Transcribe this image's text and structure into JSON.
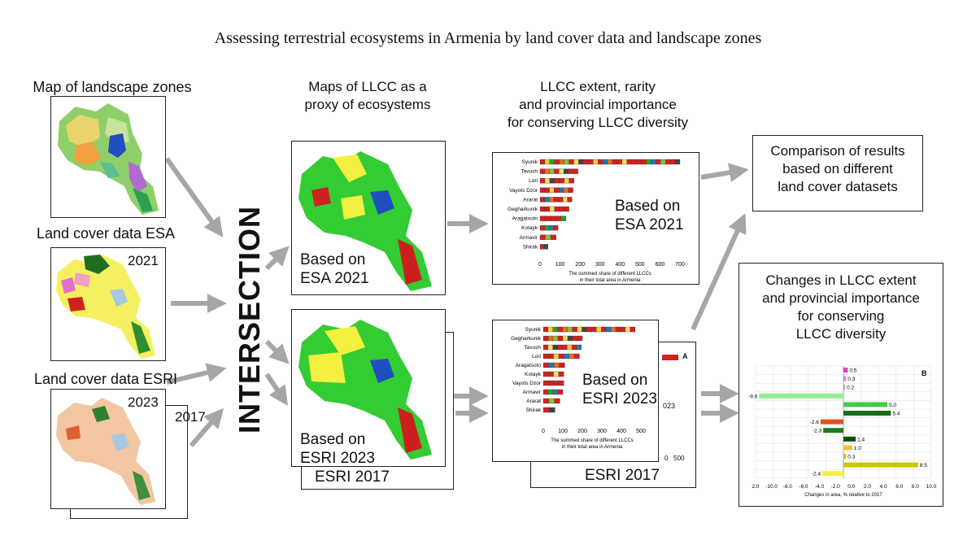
{
  "title": "Assessing terrestrial ecosystems in Armenia by land cover data and landscape zones",
  "inputs": {
    "landscape_label": "Map of landscape zones",
    "esa_label": "Land cover data ESA",
    "esa_year": "2021",
    "esri_label": "Land cover data ESRI",
    "esri_year": "2023",
    "esri_year_back": "2017"
  },
  "intersection": "INTERSECTION",
  "maps": {
    "heading_line1": "Maps of LLCC as a",
    "heading_line2": "proxy of ecosystems",
    "esa_caption_line1": "Based on",
    "esa_caption_line2": "ESA 2021",
    "esri_caption_line1": "Based on",
    "esri_caption_line2": "ESRI 2023",
    "esri_back_caption": "ESRI 2017"
  },
  "charts_heading": {
    "line1": "LLCC extent, rarity",
    "line2": "and provincial importance",
    "line3": "for conserving LLCC diversity"
  },
  "comparison": {
    "line1": "Comparison of results",
    "line2": "based on different",
    "line3": "land cover datasets"
  },
  "changes": {
    "line1": "Changes in LLCC extent",
    "line2": "and provincial importance",
    "line3": "for conserving",
    "line4": "LLCC diversity",
    "panel_letter": "B",
    "xlabel": "Changes in area, % relative to 2017"
  },
  "chart_data": [
    {
      "type": "bar",
      "overlay_line1": "Based on",
      "overlay_line2": "ESA 2021",
      "categories": [
        "Syunik",
        "Tavush",
        "Lori",
        "Vayots Dzor",
        "Ararat",
        "Gegharkunik",
        "Aragatsotn",
        "Kotayk",
        "Armavir",
        "Shirak"
      ],
      "values": [
        700,
        190,
        170,
        165,
        160,
        145,
        130,
        90,
        80,
        40
      ],
      "xticks": [
        "0",
        "100",
        "200",
        "300",
        "400",
        "500",
        "600",
        "700"
      ],
      "xlim": [
        0,
        700
      ],
      "xlabel_line1": "The summed share of different LLCCs",
      "xlabel_line2": "in their total area in Armenia"
    },
    {
      "type": "bar",
      "overlay_line1": "Based on",
      "overlay_line2": "ESRI 2023",
      "categories": [
        "Syunik",
        "Gegharkunik",
        "Tavush",
        "Lori",
        "Aragatsotn",
        "Kotayk",
        "Vayots Dzor",
        "Armavir",
        "Ararat",
        "Shirak"
      ],
      "values": [
        470,
        200,
        195,
        185,
        110,
        105,
        105,
        100,
        85,
        60
      ],
      "xticks": [
        "0",
        "100",
        "200",
        "300",
        "400",
        "500"
      ],
      "xlim": [
        0,
        500
      ],
      "xlabel_line1": "The summed share of different LLCCs",
      "xlabel_line2": "in their total area in Armenia",
      "back_panel_letter": "A",
      "back_partial_tick": "023",
      "back_partial_axis": "0   500",
      "back_caption": "ESRI 2017"
    },
    {
      "type": "bar",
      "orientation": "horizontal",
      "values": [
        0.5,
        0.3,
        0.2,
        -9.6,
        5.0,
        5.4,
        -2.6,
        -2.3,
        1.4,
        1.0,
        0.3,
        8.5,
        -2.4
      ],
      "value_labels": [
        "0.5",
        "0.3",
        "0.2",
        "-9.6",
        "5.0",
        "5.4",
        "-2.6",
        "-2.3",
        "1.4",
        "1.0",
        "0.3",
        "8.5",
        "-2.4"
      ],
      "colors": [
        "#e040c0",
        "#e880d8",
        "#aaaaaa",
        "#90ee90",
        "#44cc44",
        "#1a6e1a",
        "#e05020",
        "#1f7a1f",
        "#0d4d0d",
        "#f4c430",
        "#d4c400",
        "#c8c800",
        "#f0f040"
      ],
      "xticks": [
        "2.0",
        "-10.0",
        "-8.0",
        "-6.0",
        "-4.0",
        "-2.0",
        "0.0",
        "2.0",
        "4.0",
        "6.0",
        "8.0",
        "10.0"
      ],
      "xlim": [
        -10,
        10
      ],
      "xlabel": "Changes in area, % relative to 2017"
    }
  ]
}
